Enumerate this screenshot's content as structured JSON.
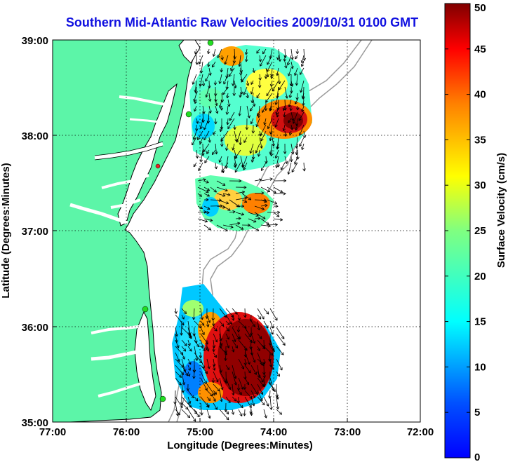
{
  "title": "Southern Mid-Atlantic Raw Velocities 2009/10/31 0100 GMT",
  "xlabel": "Longitude (Degrees:Minutes)",
  "ylabel": "Latitude (Degrees:Minutes)",
  "x_ticks": [
    "77:00",
    "76:00",
    "75:00",
    "74:00",
    "73:00",
    "72:00"
  ],
  "y_ticks": [
    "39:00",
    "38:00",
    "37:00",
    "36:00",
    "35:00"
  ],
  "colorbar": {
    "label": "Surface Velocity (cm/s)",
    "ticks": [
      "0",
      "5",
      "10",
      "15",
      "20",
      "25",
      "30",
      "35",
      "40",
      "45",
      "50"
    ],
    "min": 0,
    "max": 50,
    "colormap": "jet"
  },
  "colors": {
    "land": "#5cf5a8",
    "coastline": "#000000",
    "bathymetry": "#9a9a9a",
    "title": "#1010e0",
    "station": "#22dd22",
    "station_highlight": "#ee2222"
  },
  "map": {
    "lon_range": [
      "77:00",
      "72:00"
    ],
    "lat_range": [
      "35:00",
      "39:00"
    ],
    "grid": "dotted"
  }
}
